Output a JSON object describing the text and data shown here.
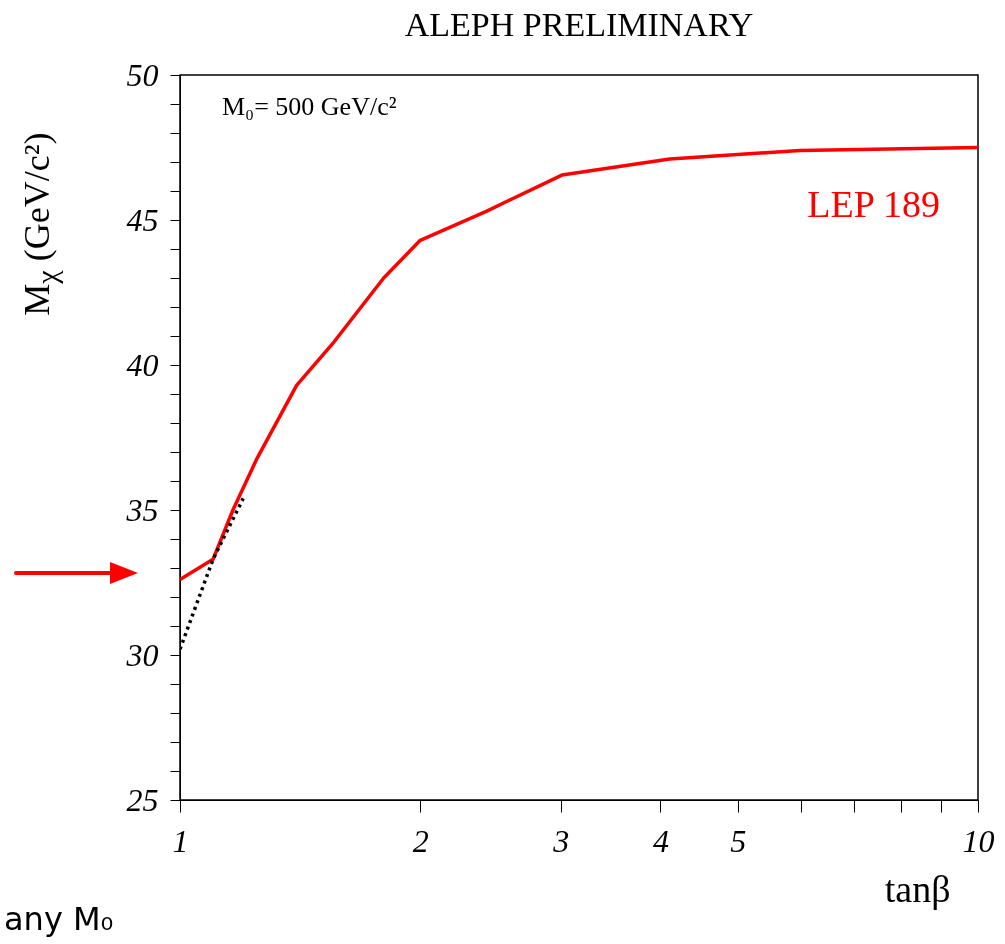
{
  "chart_data": {
    "type": "line",
    "title": "ALEPH PRELIMINARY",
    "xlabel": "tanβ",
    "ylabel": "M$_{χ}$ (GeV/c²)",
    "log": "x",
    "xlim": [
      1,
      10
    ],
    "ylim": [
      25,
      50
    ],
    "xticks": [
      1,
      2,
      3,
      4,
      5,
      {
        "value": 6,
        "label": null
      },
      {
        "value": 7,
        "label": null
      },
      {
        "value": 8,
        "label": null
      },
      {
        "value": 9,
        "label": null
      },
      10
    ],
    "yticks": [
      25,
      {
        "value": 26,
        "label": null
      },
      {
        "value": 27,
        "label": null
      },
      {
        "value": 28,
        "label": null
      },
      {
        "value": 29,
        "label": null
      },
      30,
      {
        "value": 31,
        "label": null
      },
      {
        "value": 32,
        "label": null
      },
      {
        "value": 33,
        "label": null
      },
      {
        "value": 34,
        "label": null
      },
      35,
      {
        "value": 36,
        "label": null
      },
      {
        "value": 37,
        "label": null
      },
      {
        "value": 38,
        "label": null
      },
      {
        "value": 39,
        "label": null
      },
      40,
      {
        "value": 41,
        "label": null
      },
      {
        "value": 42,
        "label": null
      },
      {
        "value": 43,
        "label": null
      },
      {
        "value": 44,
        "label": null
      },
      45,
      {
        "value": 46,
        "label": null
      },
      {
        "value": 47,
        "label": null
      },
      {
        "value": 48,
        "label": null
      },
      {
        "value": 49,
        "label": null
      },
      50
    ],
    "grid": false,
    "marker": "none",
    "series": [
      {
        "name": "LEP 189",
        "color": "#ff0000",
        "line_style": "solid",
        "x": [
          1,
          1.1,
          1.165,
          1.25,
          1.4,
          1.56,
          1.8,
          2.0,
          2.42,
          3.01,
          4.11,
          5.98,
          10
        ],
        "values": [
          32.6,
          33.3,
          35.0,
          36.8,
          39.3,
          40.8,
          43.0,
          44.3,
          45.3,
          46.55,
          47.1,
          47.4,
          47.5
        ]
      },
      {
        "color": "#000000",
        "line_style": "dotted",
        "x": [
          1,
          1.1,
          1.2
        ],
        "values": [
          30.2,
          33.3,
          35.4
        ]
      }
    ],
    "annotations": [
      "M₀= 500 GeV/c²",
      "any M₀"
    ]
  }
}
